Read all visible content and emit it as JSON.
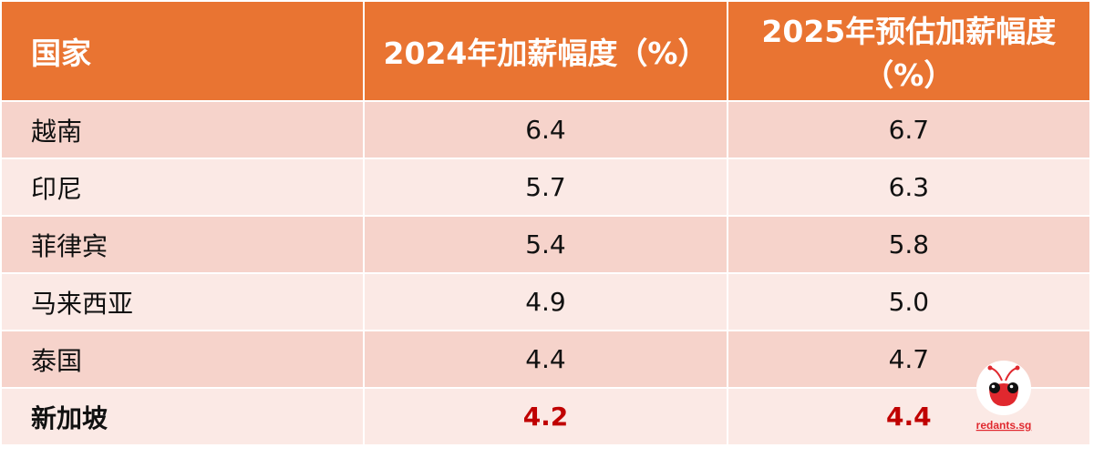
{
  "chart_data": {
    "type": "table",
    "columns": [
      "国家",
      "2024年加薪幅度（%）",
      "2025年预估加薪幅度（%）"
    ],
    "rows": [
      {
        "country": "越南",
        "y2024": "6.4",
        "y2025": "6.7",
        "highlight": false
      },
      {
        "country": "印尼",
        "y2024": "5.7",
        "y2025": "6.3",
        "highlight": false
      },
      {
        "country": "菲律宾",
        "y2024": "5.4",
        "y2025": "5.8",
        "highlight": false
      },
      {
        "country": "马来西亚",
        "y2024": "4.9",
        "y2025": "5.0",
        "highlight": false
      },
      {
        "country": "泰国",
        "y2024": "4.4",
        "y2025": "4.7",
        "highlight": false
      },
      {
        "country": "新加坡",
        "y2024": "4.2",
        "y2025": "4.4",
        "highlight": true
      }
    ]
  },
  "colors": {
    "header": "#E97432",
    "row_odd": "#F6D3CB",
    "row_even": "#FBE9E5",
    "highlight": "#C00000"
  },
  "watermark": {
    "text": "redants.sg",
    "icon": "red-ant-logo-icon"
  }
}
